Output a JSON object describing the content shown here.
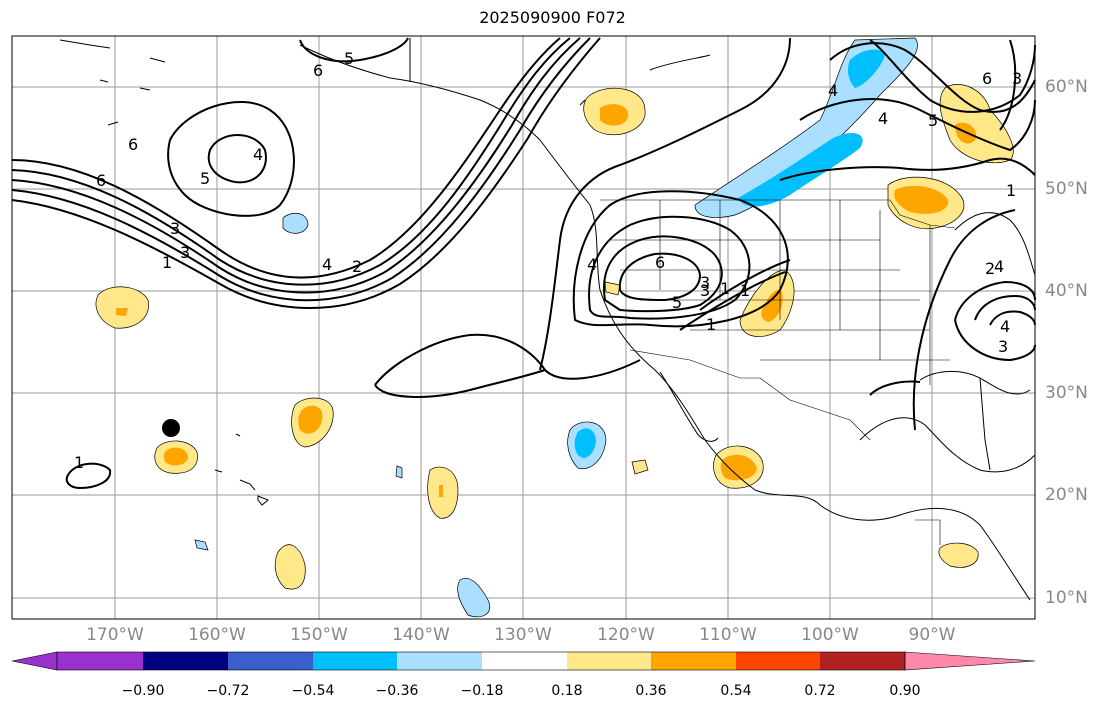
{
  "title": "2025090900 F072",
  "lat_labels": [
    "60°N",
    "50°N",
    "40°N",
    "30°N",
    "20°N",
    "10°N"
  ],
  "lon_labels": [
    "170°W",
    "160°W",
    "150°W",
    "140°W",
    "130°W",
    "120°W",
    "110°W",
    "100°W",
    "90°W"
  ],
  "contour_labels": [
    "5",
    "6",
    "6",
    "4",
    "5",
    "6",
    "3",
    "3",
    "1",
    "4",
    "2",
    "4",
    "6",
    "3",
    "5",
    "1",
    "3",
    "1",
    "4",
    "6",
    "3",
    "4",
    "5",
    "1",
    "4",
    "2",
    "4",
    "3",
    "1",
    "1"
  ],
  "colorbar": {
    "ticks": [
      "−0.90",
      "−0.72",
      "−0.54",
      "−0.36",
      "−0.18",
      "0.18",
      "0.36",
      "0.54",
      "0.72",
      "0.90"
    ],
    "colors": [
      "#9932cc",
      "#000080",
      "#3a5fcd",
      "#00bfff",
      "#aadfff",
      "#ffffff",
      "#ffe88a",
      "#ffa500",
      "#ff4500",
      "#b22222",
      "#ff88aa"
    ]
  },
  "marker": "storm-position-dot"
}
